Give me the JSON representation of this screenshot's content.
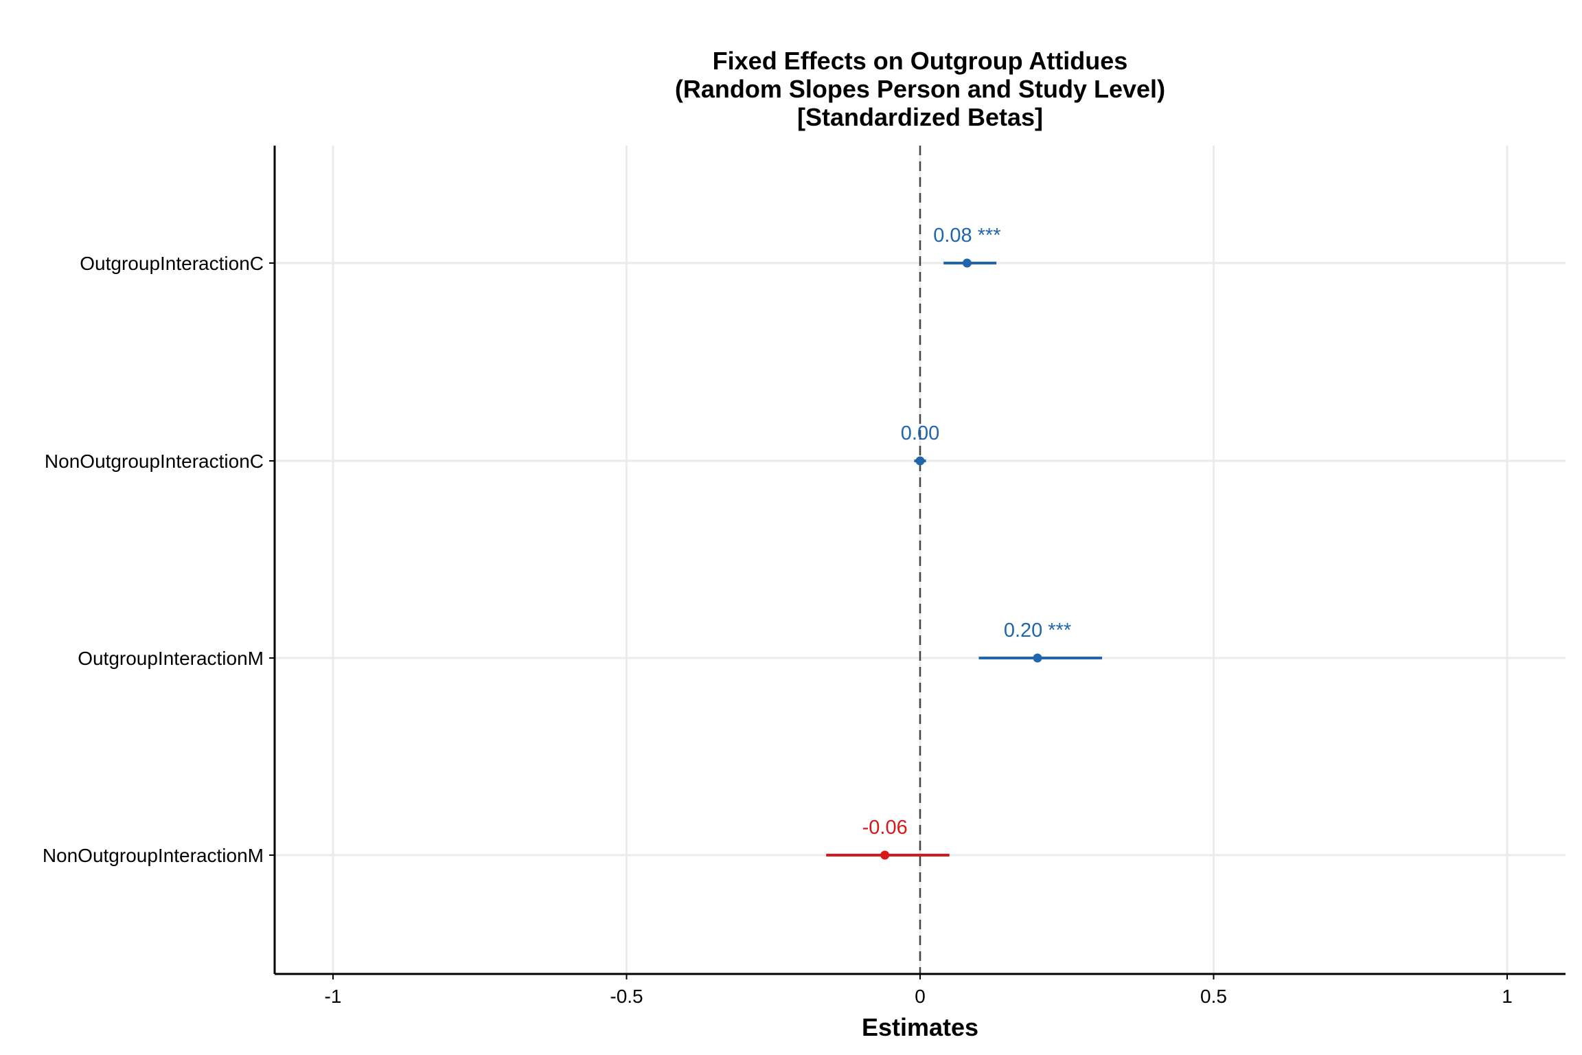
{
  "chart_data": {
    "type": "forest",
    "title": [
      "Fixed Effects on Outgroup Attidues",
      "(Random Slopes Person and Study Level)",
      "[Standardized Betas]"
    ],
    "xlabel": "Estimates",
    "ylabel": "",
    "xlim": [
      -1.1,
      1.1
    ],
    "x_ticks": [
      -1,
      -0.5,
      0,
      0.5,
      1
    ],
    "x_tick_labels": [
      "-1",
      "-0.5",
      "0",
      "0.5",
      "1"
    ],
    "reference_line": 0,
    "grid": true,
    "colors": {
      "positive": "#2166ac",
      "negative": "#d7191c"
    },
    "terms": [
      {
        "name": "OutgroupInteractionC",
        "estimate": 0.08,
        "ci": [
          0.04,
          0.13
        ],
        "label": "0.08 ***"
      },
      {
        "name": "NonOutgroupInteractionC",
        "estimate": 0.0,
        "ci": [
          -0.01,
          0.01
        ],
        "label": "0.00"
      },
      {
        "name": "OutgroupInteractionM",
        "estimate": 0.2,
        "ci": [
          0.1,
          0.31
        ],
        "label": "0.20 ***"
      },
      {
        "name": "NonOutgroupInteractionM",
        "estimate": -0.06,
        "ci": [
          -0.16,
          0.05
        ],
        "label": "-0.06"
      }
    ]
  }
}
